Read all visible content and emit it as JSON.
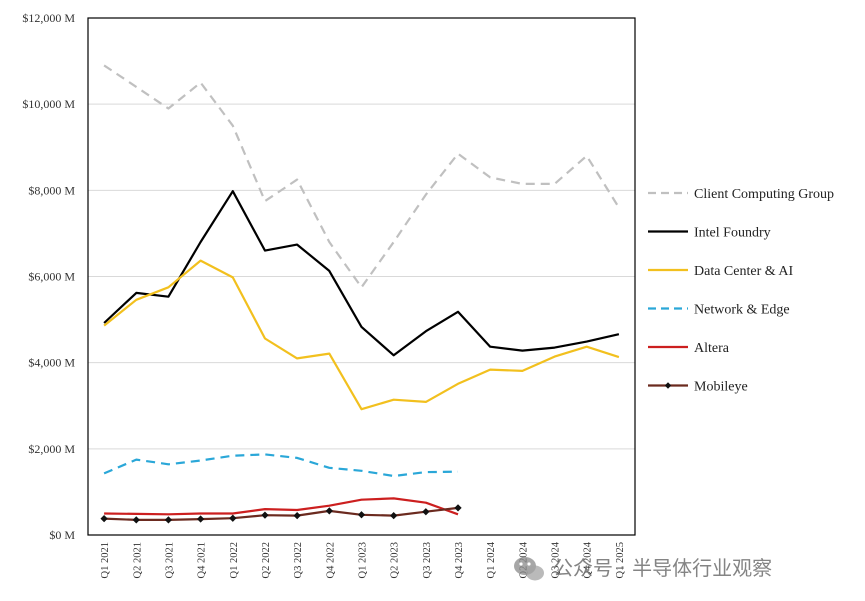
{
  "chart_data": {
    "type": "line",
    "categories": [
      "Q1 2021",
      "Q2 2021",
      "Q3 2021",
      "Q4 2021",
      "Q1 2022",
      "Q2 2022",
      "Q3 2022",
      "Q4 2022",
      "Q1 2023",
      "Q2 2023",
      "Q3 2023",
      "Q4 2023",
      "Q1 2024",
      "Q2 2024",
      "Q3 2024",
      "Q4 2024",
      "Q1 2025"
    ],
    "y_ticks": [
      "$0 M",
      "$2,000 M",
      "$4,000 M",
      "$6,000 M",
      "$8,000 M",
      "$10,000 M",
      "$12,000 M"
    ],
    "ylim": [
      0,
      12000
    ],
    "grid": true,
    "legend_position": "right",
    "series": [
      {
        "name": "Client Computing Group",
        "color": "#c0c0c0",
        "style": "dashed",
        "values": [
          10900,
          10400,
          9900,
          10500,
          9500,
          7750,
          8250,
          6800,
          5750,
          6800,
          7900,
          8850,
          8300,
          8150,
          8150,
          8800,
          7600
        ]
      },
      {
        "name": "Intel Foundry",
        "color": "#000000",
        "style": "solid",
        "values": [
          4920,
          5620,
          5530,
          6800,
          7980,
          6600,
          6740,
          6130,
          4830,
          4170,
          4730,
          5180,
          4370,
          4280,
          4350,
          4490,
          4660
        ]
      },
      {
        "name": "Data Center & AI",
        "color": "#f2c01e",
        "style": "solid",
        "values": [
          4860,
          5460,
          5750,
          6370,
          5980,
          4560,
          4100,
          4210,
          2920,
          3140,
          3090,
          3510,
          3840,
          3810,
          4140,
          4370,
          4130
        ]
      },
      {
        "name": "Network & Edge",
        "color": "#2aa7d8",
        "style": "dashed",
        "values": [
          1430,
          1750,
          1640,
          1730,
          1840,
          1870,
          1790,
          1560,
          1490,
          1370,
          1460,
          1470,
          null,
          null,
          null,
          null,
          null
        ]
      },
      {
        "name": "Altera",
        "color": "#cc1f1f",
        "style": "solid",
        "values": [
          500,
          490,
          480,
          500,
          500,
          600,
          580,
          680,
          820,
          850,
          750,
          480,
          null,
          null,
          null,
          null,
          null
        ]
      },
      {
        "name": "Mobileye",
        "color": "#6b2a1f",
        "style": "solid-diamond",
        "values": [
          380,
          350,
          350,
          370,
          390,
          460,
          450,
          560,
          470,
          450,
          540,
          630,
          null,
          null,
          null,
          null,
          null
        ]
      }
    ]
  },
  "watermark": {
    "text": "公众号 · 半导体行业观察"
  }
}
